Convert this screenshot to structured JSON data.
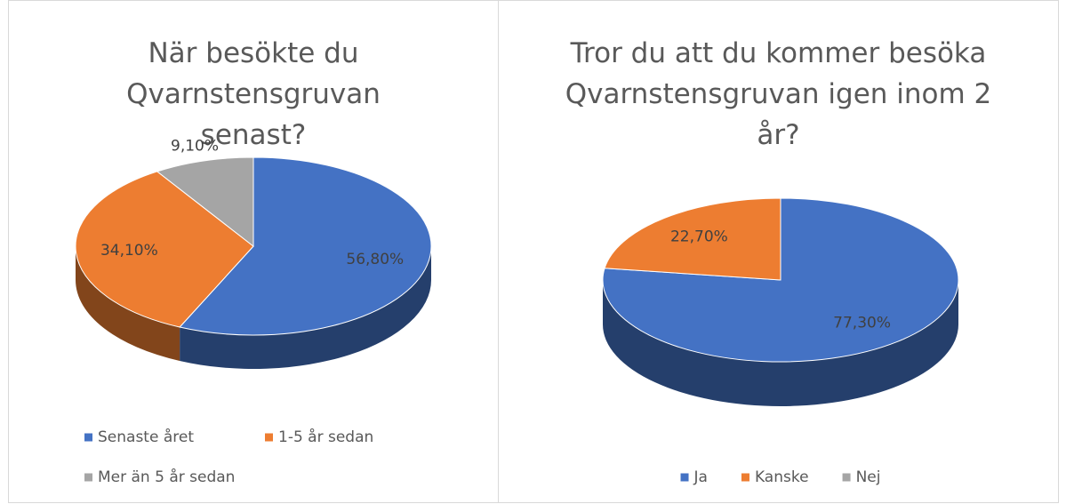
{
  "chart_data": [
    {
      "type": "pie3d",
      "title": "När besökte du Qvarnstensgruvan senast?",
      "categories": [
        "Senaste året",
        "1-5 år sedan",
        "Mer än 5 år sedan"
      ],
      "values": [
        56.8,
        34.1,
        9.1
      ],
      "value_labels": [
        "56,80%",
        "34,10%",
        "9,10%"
      ],
      "colors": [
        "#4472c4",
        "#ed7d31",
        "#a5a5a5"
      ],
      "legend": "bottom"
    },
    {
      "type": "pie3d",
      "title": "Tror du att du kommer besöka Qvarnstensgruvan igen inom 2 år?",
      "categories": [
        "Ja",
        "Kanske",
        "Nej"
      ],
      "values": [
        77.3,
        22.7,
        0
      ],
      "value_labels": [
        "77,30%",
        "22,70%",
        null
      ],
      "colors": [
        "#4472c4",
        "#ed7d31",
        "#a5a5a5"
      ],
      "legend": "bottom"
    }
  ]
}
